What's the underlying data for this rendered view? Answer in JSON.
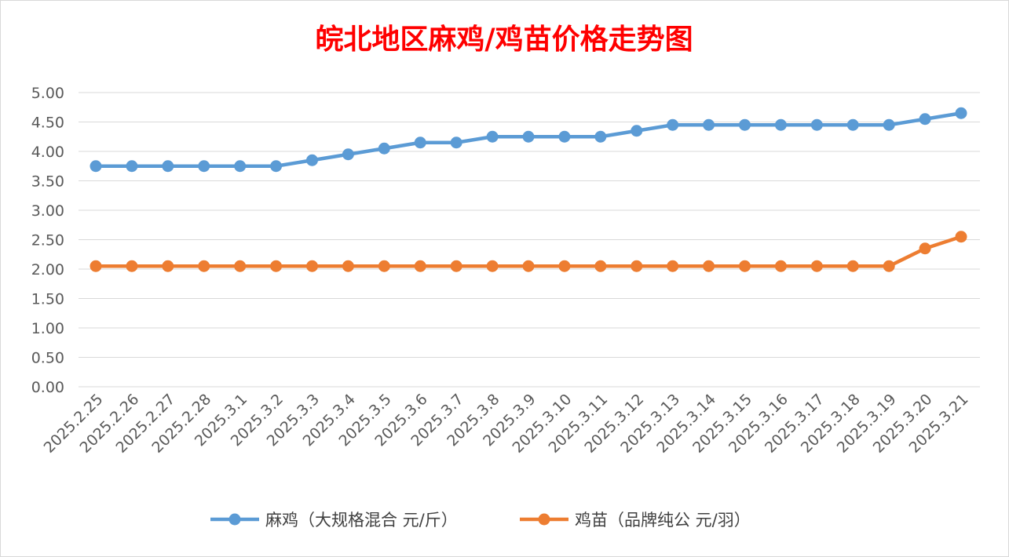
{
  "chart_data": {
    "type": "line",
    "title": "皖北地区麻鸡/鸡苗价格走势图",
    "categories": [
      "2025.2.25",
      "2025.2.26",
      "2025.2.27",
      "2025.2.28",
      "2025.3.1",
      "2025.3.2",
      "2025.3.3",
      "2025.3.4",
      "2025.3.5",
      "2025.3.6",
      "2025.3.7",
      "2025.3.8",
      "2025.3.9",
      "2025.3.10",
      "2025.3.11",
      "2025.3.12",
      "2025.3.13",
      "2025.3.14",
      "2025.3.15",
      "2025.3.16",
      "2025.3.17",
      "2025.3.18",
      "2025.3.19",
      "2025.3.20",
      "2025.3.21"
    ],
    "y_ticks": [
      "0.00",
      "0.50",
      "1.00",
      "1.50",
      "2.00",
      "2.50",
      "3.00",
      "3.50",
      "4.00",
      "4.50",
      "5.00"
    ],
    "ylim": [
      0,
      5
    ],
    "grid": true,
    "legend_position": "bottom",
    "series": [
      {
        "name": "麻鸡（大规格混合 元/斤）",
        "color": "#5b9bd5",
        "values": [
          3.75,
          3.75,
          3.75,
          3.75,
          3.75,
          3.75,
          3.85,
          3.95,
          4.05,
          4.15,
          4.15,
          4.25,
          4.25,
          4.25,
          4.25,
          4.35,
          4.45,
          4.45,
          4.45,
          4.45,
          4.45,
          4.45,
          4.45,
          4.55,
          4.65
        ]
      },
      {
        "name": "鸡苗（品牌纯公 元/羽）",
        "color": "#ed7d31",
        "values": [
          2.05,
          2.05,
          2.05,
          2.05,
          2.05,
          2.05,
          2.05,
          2.05,
          2.05,
          2.05,
          2.05,
          2.05,
          2.05,
          2.05,
          2.05,
          2.05,
          2.05,
          2.05,
          2.05,
          2.05,
          2.05,
          2.05,
          2.05,
          2.35,
          2.55
        ]
      }
    ]
  }
}
